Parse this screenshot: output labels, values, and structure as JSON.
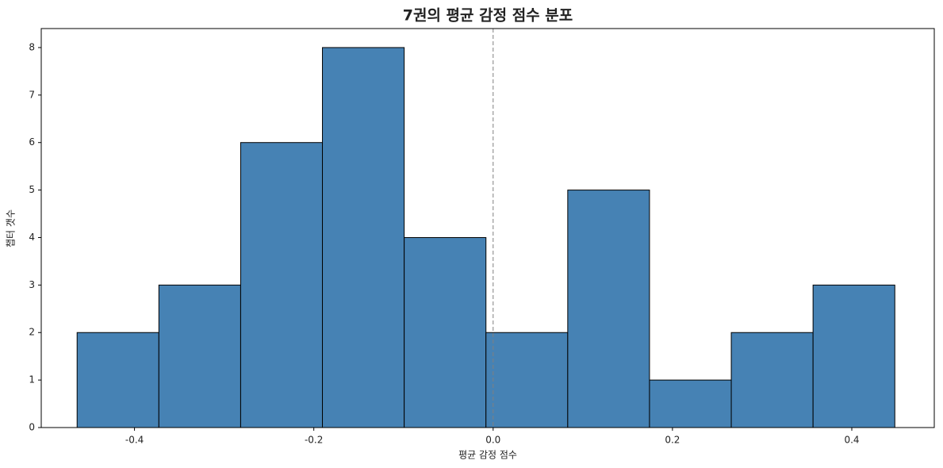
{
  "chart_data": {
    "type": "histogram",
    "title": "7권의 평균 감정 점수 분포",
    "x_label": "평균 감정 점수",
    "y_label": "챕터 갯수",
    "bins": [
      -0.464,
      -0.3728,
      -0.2816,
      -0.1904,
      -0.0992,
      -0.008,
      0.0832,
      0.1744,
      0.2656,
      0.3568,
      0.448
    ],
    "counts": [
      2,
      3,
      6,
      8,
      4,
      2,
      5,
      1,
      2,
      3
    ],
    "color": "#4682b4",
    "edgecolor": "#000000",
    "reference_line": 0,
    "xlim": [
      -0.504,
      0.492
    ],
    "xticks": [
      -0.4,
      -0.2,
      {
        "value": 0,
        "label": "0.0"
      },
      0.2,
      0.4
    ],
    "ylim": [
      0,
      8.4
    ],
    "yticks": [
      0,
      1,
      2,
      3,
      4,
      5,
      6,
      7,
      8
    ]
  }
}
